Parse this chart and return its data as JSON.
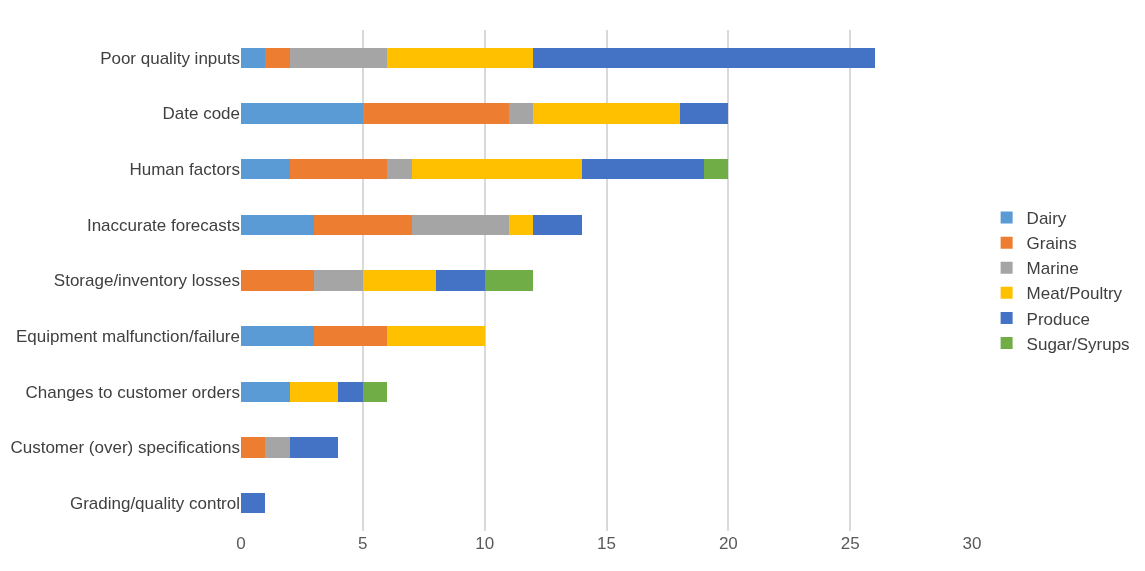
{
  "chart_data": {
    "type": "bar",
    "orientation": "horizontal",
    "stacked": true,
    "categories": [
      "Poor quality inputs",
      "Date code",
      "Human factors",
      "Inaccurate forecasts",
      "Storage/inventory losses",
      "Equipment malfunction/failure",
      "Changes to customer orders",
      "Customer (over) specifications",
      "Grading/quality control"
    ],
    "series": [
      {
        "name": "Dairy",
        "color": "#5b9bd5",
        "values": [
          1,
          5,
          2,
          3,
          0,
          3,
          2,
          0,
          0
        ]
      },
      {
        "name": "Grains",
        "color": "#ed7d31",
        "values": [
          1,
          6,
          4,
          4,
          3,
          3,
          0,
          1,
          0
        ]
      },
      {
        "name": "Marine",
        "color": "#a5a5a5",
        "values": [
          4,
          1,
          1,
          4,
          2,
          0,
          0,
          1,
          0
        ]
      },
      {
        "name": "Meat/Poultry",
        "color": "#ffc000",
        "values": [
          6,
          6,
          7,
          1,
          3,
          4,
          2,
          0,
          0
        ]
      },
      {
        "name": "Produce",
        "color": "#4472c4",
        "values": [
          14,
          2,
          5,
          2,
          2,
          0,
          1,
          2,
          1
        ]
      },
      {
        "name": "Sugar/Syrups",
        "color": "#70ad47",
        "values": [
          0,
          0,
          1,
          0,
          2,
          0,
          1,
          0,
          0
        ]
      }
    ],
    "xlim": [
      0,
      30
    ],
    "xticks": [
      0,
      5,
      10,
      15,
      20,
      25,
      30
    ],
    "grid": "x",
    "legend": "right"
  }
}
